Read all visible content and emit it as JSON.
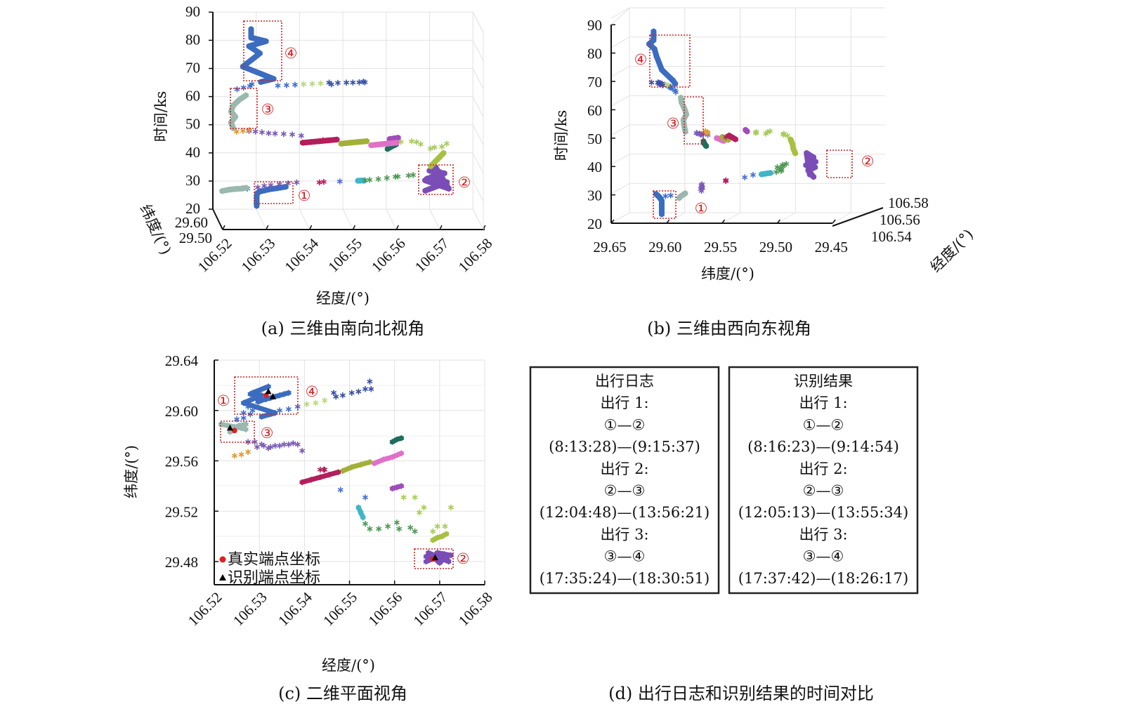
{
  "chart_data": {
    "type": "scatter",
    "panels": [
      {
        "id": "a",
        "caption": "(a) 三维由南向北视角",
        "xlabel": "经度/(°)",
        "ylabel": "时间/ks",
        "zlabel": "纬度/(°)",
        "xticks": [
          "106.52",
          "106.53",
          "106.54",
          "106.55",
          "106.56",
          "106.57",
          "106.58"
        ],
        "yticks": [
          "20",
          "30",
          "40",
          "50",
          "60",
          "70",
          "80",
          "90"
        ],
        "zticks": [
          "29.60",
          "29.50"
        ],
        "xlim": [
          106.52,
          106.58
        ],
        "ylim": [
          20,
          90
        ]
      },
      {
        "id": "b",
        "caption": "(b) 三维由西向东视角",
        "xlabel": "纬度/(°)",
        "ylabel": "时间/ks",
        "zlabel": "经度/(°)",
        "xticks": [
          "29.65",
          "29.60",
          "29.55",
          "29.50",
          "29.45"
        ],
        "yticks": [
          "20",
          "30",
          "40",
          "50",
          "60",
          "70",
          "80",
          "90"
        ],
        "zticks": [
          "106.54",
          "106.56",
          "106.58"
        ],
        "xlim": [
          29.65,
          29.45
        ],
        "ylim": [
          20,
          90
        ]
      },
      {
        "id": "c",
        "caption": "(c) 二维平面视角",
        "xlabel": "经度/(°)",
        "ylabel": "纬度/(°)",
        "xticks": [
          "106.52",
          "106.53",
          "106.54",
          "106.55",
          "106.56",
          "106.57",
          "106.58"
        ],
        "yticks": [
          "29.64",
          "29.60",
          "29.56",
          "29.52",
          "29.48"
        ],
        "xlim": [
          106.52,
          106.58
        ],
        "ylim": [
          29.46,
          29.64
        ],
        "legend": [
          {
            "label": "真实端点坐标",
            "marker": "circle",
            "color": "#e02020"
          },
          {
            "label": "识别端点坐标",
            "marker": "triangle",
            "color": "#000000"
          }
        ],
        "legend_position": "bottom-left"
      }
    ],
    "point_format": [
      "longitude",
      "latitude",
      "time_ks"
    ],
    "trajectories": [
      {
        "color": "#3b6cc0",
        "dense": true,
        "points": [
          [
            106.5297,
            29.607,
            22.5
          ],
          [
            106.5297,
            29.607,
            24
          ],
          [
            106.5297,
            29.607,
            25.5
          ],
          [
            106.5298,
            29.607,
            27
          ],
          [
            106.5305,
            29.608,
            27.6
          ],
          [
            106.5315,
            29.609,
            27.9
          ],
          [
            106.5325,
            29.61,
            28.2
          ],
          [
            106.5335,
            29.611,
            28.4
          ],
          [
            106.5345,
            29.612,
            28.6
          ],
          [
            106.5355,
            29.613,
            28.8
          ],
          [
            106.5365,
            29.614,
            29
          ]
        ]
      },
      {
        "color": "#3f6fd0",
        "dense": false,
        "points": [
          [
            106.5275,
            29.603,
            28.8
          ],
          [
            106.5265,
            29.598,
            29.1
          ]
        ]
      },
      {
        "color": "#9ab8ae",
        "dense": true,
        "points": [
          [
            106.5215,
            29.589,
            28.5
          ],
          [
            106.523,
            29.588,
            29
          ],
          [
            106.5245,
            29.587,
            29.3
          ],
          [
            106.526,
            29.586,
            29.5
          ],
          [
            106.527,
            29.585,
            29.8
          ]
        ]
      },
      {
        "color": "#7a5ab4",
        "dense": false,
        "points": [
          [
            106.5295,
            29.571,
            30.5
          ],
          [
            106.531,
            29.572,
            31
          ],
          [
            106.5325,
            29.571,
            31.3
          ],
          [
            106.5345,
            29.572,
            31.6
          ],
          [
            106.5365,
            29.573,
            31.9
          ],
          [
            106.5385,
            29.573,
            32.2
          ]
        ]
      },
      {
        "color": "#b41e5c",
        "dense": false,
        "points": [
          [
            106.5435,
            29.553,
            33
          ],
          [
            106.5445,
            29.553,
            33.2
          ]
        ]
      },
      {
        "color": "#4a6fd4",
        "dense": false,
        "points": [
          [
            106.548,
            29.537,
            34
          ],
          [
            106.5535,
            29.531,
            34.5
          ]
        ]
      },
      {
        "color": "#3fb6c8",
        "dense": true,
        "points": [
          [
            106.552,
            29.523,
            34.8
          ],
          [
            106.5525,
            29.519,
            35
          ],
          [
            106.553,
            29.515,
            35.2
          ]
        ]
      },
      {
        "color": "#4e9a55",
        "dense": false,
        "points": [
          [
            106.5535,
            29.51,
            35.5
          ],
          [
            106.5545,
            29.506,
            35.8
          ],
          [
            106.5565,
            29.506,
            36.1
          ],
          [
            106.5585,
            29.508,
            36.4
          ],
          [
            106.5605,
            29.511,
            36.7
          ],
          [
            106.561,
            29.506,
            37
          ],
          [
            106.5635,
            29.507,
            37.3
          ],
          [
            106.5645,
            29.504,
            37.6
          ]
        ]
      },
      {
        "color": "#7b4db6",
        "dense": true,
        "points": [
          [
            106.567,
            29.48,
            33
          ],
          [
            106.569,
            29.483,
            34
          ],
          [
            106.571,
            29.486,
            35
          ],
          [
            106.572,
            29.48,
            36
          ],
          [
            106.5675,
            29.487,
            37
          ],
          [
            106.57,
            29.479,
            38
          ],
          [
            106.5715,
            29.484,
            39
          ],
          [
            106.568,
            29.482,
            40
          ],
          [
            106.5695,
            29.487,
            41
          ],
          [
            106.5725,
            29.485,
            33.5
          ],
          [
            106.567,
            29.484,
            36.5
          ],
          [
            106.5705,
            29.481,
            39.5
          ]
        ]
      },
      {
        "color": "#a8c040",
        "dense": true,
        "points": [
          [
            106.5685,
            29.497,
            41
          ],
          [
            106.5695,
            29.499,
            42.5
          ],
          [
            106.5705,
            29.5,
            44
          ],
          [
            106.5715,
            29.502,
            45.5
          ]
        ]
      },
      {
        "color": "#a8cc5a",
        "dense": false,
        "points": [
          [
            106.5685,
            29.504,
            47
          ],
          [
            106.5695,
            29.508,
            47.3
          ],
          [
            106.5712,
            29.508,
            47.5
          ],
          [
            106.5665,
            29.523,
            47.8
          ],
          [
            106.5725,
            29.523,
            48
          ],
          [
            106.562,
            29.531,
            48.3
          ],
          [
            106.5645,
            29.531,
            48.5
          ],
          [
            106.5655,
            29.519,
            48.7
          ]
        ]
      },
      {
        "color": "#a04cb8",
        "dense": true,
        "points": [
          [
            106.5595,
            29.538,
            49
          ],
          [
            106.5605,
            29.539,
            49.2
          ],
          [
            106.5615,
            29.54,
            49.4
          ]
        ]
      },
      {
        "color": "#1e6e5e",
        "dense": true,
        "points": [
          [
            106.5595,
            29.575,
            44
          ],
          [
            106.5605,
            29.577,
            44.8
          ],
          [
            106.5615,
            29.578,
            45.5
          ]
        ]
      },
      {
        "color": "#e070c8",
        "dense": true,
        "points": [
          [
            106.5555,
            29.558,
            46
          ],
          [
            106.5575,
            29.561,
            46.2
          ],
          [
            106.5595,
            29.563,
            46.4
          ],
          [
            106.5615,
            29.566,
            46.6
          ]
        ]
      },
      {
        "color": "#a2b03a",
        "dense": true,
        "points": [
          [
            106.5485,
            29.552,
            46.8
          ],
          [
            106.5505,
            29.555,
            47
          ],
          [
            106.5525,
            29.557,
            47.2
          ],
          [
            106.5545,
            29.559,
            47.4
          ]
        ]
      },
      {
        "color": "#b41e5c",
        "dense": true,
        "points": [
          [
            106.5395,
            29.543,
            47.5
          ],
          [
            106.5415,
            29.545,
            47.7
          ],
          [
            106.5435,
            29.547,
            47.9
          ],
          [
            106.5455,
            29.549,
            48.1
          ],
          [
            106.5475,
            29.551,
            48.3
          ]
        ]
      },
      {
        "color": "#b41e5c",
        "dense": false,
        "points": [
          [
            106.5443,
            29.553,
            48
          ]
        ]
      },
      {
        "color": "#7a5ab4",
        "dense": false,
        "points": [
          [
            106.5395,
            29.568,
            49
          ],
          [
            106.5375,
            29.574,
            49.2
          ],
          [
            106.5355,
            29.573,
            49.4
          ],
          [
            106.5335,
            29.572,
            49.6
          ],
          [
            106.532,
            29.57,
            49.8
          ],
          [
            106.5305,
            29.573,
            50
          ],
          [
            106.529,
            29.575,
            50.2
          ],
          [
            106.5275,
            29.575,
            50.4
          ]
        ]
      },
      {
        "color": "#e09a30",
        "dense": false,
        "points": [
          [
            106.5245,
            29.564,
            50.6
          ],
          [
            106.526,
            29.565,
            50.8
          ],
          [
            106.5275,
            29.567,
            51
          ]
        ]
      },
      {
        "color": "#9ab8ae",
        "dense": true,
        "points": [
          [
            106.524,
            29.584,
            51
          ],
          [
            106.5235,
            29.585,
            53
          ],
          [
            106.5245,
            29.586,
            55
          ],
          [
            106.5235,
            29.583,
            57
          ],
          [
            106.524,
            29.585,
            59
          ],
          [
            106.5255,
            29.588,
            61
          ],
          [
            106.527,
            29.589,
            62.5
          ]
        ]
      },
      {
        "color": "#3f6fd0",
        "dense": false,
        "points": [
          [
            106.525,
            29.593,
            64.5
          ],
          [
            106.5265,
            29.594,
            65
          ],
          [
            106.528,
            29.597,
            65.5
          ],
          [
            106.5285,
            29.6,
            66
          ]
        ]
      },
      {
        "color": "#3b6cc0",
        "dense": true,
        "points": [
          [
            106.5305,
            29.595,
            67
          ],
          [
            106.5335,
            29.598,
            68
          ],
          [
            106.5265,
            29.606,
            72
          ],
          [
            106.5305,
            29.612,
            76.5
          ],
          [
            106.528,
            29.613,
            79
          ],
          [
            106.532,
            29.619,
            80.5
          ],
          [
            106.5285,
            29.614,
            82
          ],
          [
            106.5285,
            29.614,
            85
          ]
        ]
      },
      {
        "color": "#3f6fd0",
        "dense": false,
        "points": [
          [
            106.5345,
            29.6,
            65.5
          ],
          [
            106.5365,
            29.601,
            65.6
          ],
          [
            106.5385,
            29.603,
            65.7
          ]
        ]
      },
      {
        "color": "#b8d87a",
        "dense": false,
        "points": [
          [
            106.5405,
            29.605,
            65.8
          ],
          [
            106.5425,
            29.606,
            65.9
          ],
          [
            106.5445,
            29.608,
            66
          ]
        ]
      },
      {
        "color": "#3a4fa8",
        "dense": false,
        "points": [
          [
            106.5465,
            29.614,
            66
          ],
          [
            106.547,
            29.611,
            65.5
          ],
          [
            106.5485,
            29.612,
            66
          ],
          [
            106.5505,
            29.614,
            66
          ],
          [
            106.552,
            29.615,
            66
          ],
          [
            106.5535,
            29.617,
            66
          ],
          [
            106.5545,
            29.623,
            66
          ],
          [
            106.5548,
            29.617,
            66
          ]
        ]
      }
    ],
    "true_endpoints": [
      [
        106.5315,
        29.612
      ],
      [
        106.5245,
        29.584
      ],
      [
        106.5685,
        29.482
      ]
    ],
    "identified_endpoints": [
      [
        106.532,
        29.615
      ],
      [
        106.533,
        29.611
      ],
      [
        106.5235,
        29.586
      ],
      [
        106.569,
        29.483
      ]
    ],
    "region_labels": [
      "①",
      "②",
      "③",
      "④"
    ]
  },
  "panel_d": {
    "caption": "(d) 出行日志和识别结果的时间对比",
    "tables": [
      {
        "lines": [
          "出行日志",
          "出行 1:",
          "①—②",
          "(8:13:28)—(9:15:37)",
          "出行 2:",
          "②—③",
          "(12:04:48)—(13:56:21)",
          "出行 3:",
          "③—④",
          "(17:35:24)—(18:30:51)"
        ]
      },
      {
        "lines": [
          "识别结果",
          "出行 1:",
          "①—②",
          "(8:16:23)—(9:14:54)",
          "出行 2:",
          "②—③",
          "(12:05:13)—(13:55:34)",
          "出行 3:",
          "③—④",
          "(17:37:42)—(18:26:17)"
        ]
      }
    ]
  }
}
